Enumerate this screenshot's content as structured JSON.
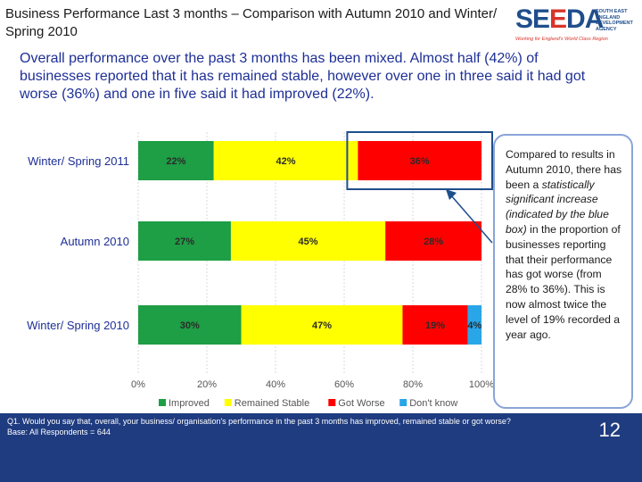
{
  "title": "Business Performance Last 3 months – Comparison with Autumn 2010 and Winter/ Spring 2010",
  "logo": {
    "wordmark_left": "SE",
    "wordmark_accent": "E",
    "wordmark_right": "DA",
    "agency": "SOUTH EAST ENGLAND DEVELOPMENT AGENCY",
    "strapline": "Working for England's World Class Region"
  },
  "summary": "Overall performance over the past 3 months has been mixed. Almost half (42%) of businesses reported that it has remained stable, however over one in three said it had got worse (36%) and one in five said it had improved (22%).",
  "callout": {
    "text_before": "Compared to results in Autumn 2010, there has been a ",
    "emphasis": "statistically significant increase (indicated by the blue box)",
    "text_after": " in the proportion of businesses reporting that their performance has got worse (from 28% to 36%). This is now almost twice the level of 19% recorded a year ago."
  },
  "footer": {
    "question": "Q1. Would you say that, overall, your business/ organisation's performance in the past 3 months has improved, remained stable or got worse?",
    "base": "Base: All Respondents = 644",
    "page_number": "12"
  },
  "chart_data": {
    "type": "bar",
    "orientation": "horizontal",
    "stacked": true,
    "categories": [
      "Winter/ Spring 2011",
      "Autumn 2010",
      "Winter/ Spring 2010"
    ],
    "series": [
      {
        "name": "Improved",
        "color": "#1e9e45",
        "values": [
          22,
          27,
          30
        ],
        "labels": [
          "22%",
          "27%",
          "30%"
        ]
      },
      {
        "name": "Remained Stable",
        "color": "#ffff00",
        "values": [
          42,
          45,
          47
        ],
        "labels": [
          "42%",
          "45%",
          "47%"
        ]
      },
      {
        "name": "Got Worse",
        "color": "#ff0000",
        "values": [
          36,
          28,
          19
        ],
        "labels": [
          "36%",
          "28%",
          "19%"
        ]
      },
      {
        "name": "Don't know",
        "color": "#29a6e8",
        "values": [
          0,
          0,
          4
        ],
        "labels": [
          "",
          "",
          "4%"
        ]
      }
    ],
    "xlim": [
      0,
      100
    ],
    "xticks": [
      "0%",
      "20%",
      "40%",
      "60%",
      "80%",
      "100%"
    ],
    "grid": true,
    "legend_position": "bottom",
    "highlight": {
      "category": "Winter/ Spring 2011",
      "series": "Got Worse",
      "color": "#1f4e8c"
    }
  }
}
